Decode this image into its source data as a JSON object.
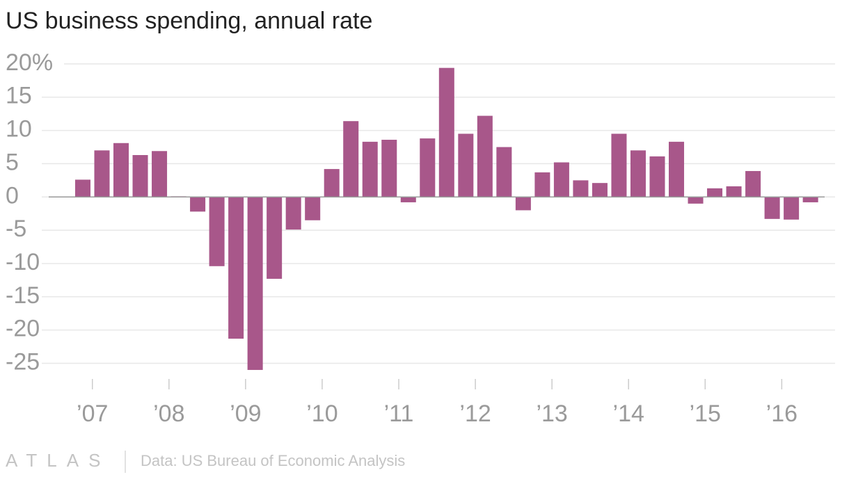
{
  "chart_data": {
    "type": "bar",
    "title": "US business spending, annual rate",
    "color": "#a8578a",
    "x": [
      2006.875,
      2007.125,
      2007.375,
      2007.625,
      2007.875,
      2008.125,
      2008.375,
      2008.625,
      2008.875,
      2009.125,
      2009.375,
      2009.625,
      2009.875,
      2010.125,
      2010.375,
      2010.625,
      2010.875,
      2011.125,
      2011.375,
      2011.625,
      2011.875,
      2012.125,
      2012.375,
      2012.625,
      2012.875,
      2013.125,
      2013.375,
      2013.625,
      2013.875,
      2014.125,
      2014.375,
      2014.625,
      2014.875,
      2015.125,
      2015.375,
      2015.625,
      2015.875,
      2016.125,
      2016.375
    ],
    "values": [
      2.6,
      7.0,
      8.1,
      6.3,
      6.9,
      0.1,
      -2.2,
      -10.4,
      -21.3,
      -26.0,
      -12.3,
      -4.9,
      -3.5,
      4.2,
      11.4,
      8.3,
      8.6,
      -0.8,
      8.8,
      19.4,
      9.5,
      12.2,
      7.5,
      -2.0,
      3.7,
      5.2,
      2.5,
      2.1,
      9.5,
      7.0,
      6.1,
      8.3,
      -1.0,
      1.3,
      1.6,
      3.9,
      -3.3,
      -3.4,
      -0.8
    ],
    "xlim": [
      2006.43,
      2016.56
    ],
    "xticks": [
      {
        "value": 2007,
        "label": "’07"
      },
      {
        "value": 2008,
        "label": "’08"
      },
      {
        "value": 2009,
        "label": "’09"
      },
      {
        "value": 2010,
        "label": "’10"
      },
      {
        "value": 2011,
        "label": "’11"
      },
      {
        "value": 2012,
        "label": "’12"
      },
      {
        "value": 2013,
        "label": "’13"
      },
      {
        "value": 2014,
        "label": "’14"
      },
      {
        "value": 2015,
        "label": "’15"
      },
      {
        "value": 2016,
        "label": "’16"
      }
    ],
    "ylim": [
      -26.1,
      20.2
    ],
    "yticks": [
      {
        "value": 20,
        "label": "20%"
      },
      15,
      10,
      5,
      0,
      -5,
      -10,
      -15,
      -20,
      -25
    ],
    "grid": true,
    "logo": "ATLAS",
    "source": "Data: US Bureau of Economic Analysis"
  }
}
